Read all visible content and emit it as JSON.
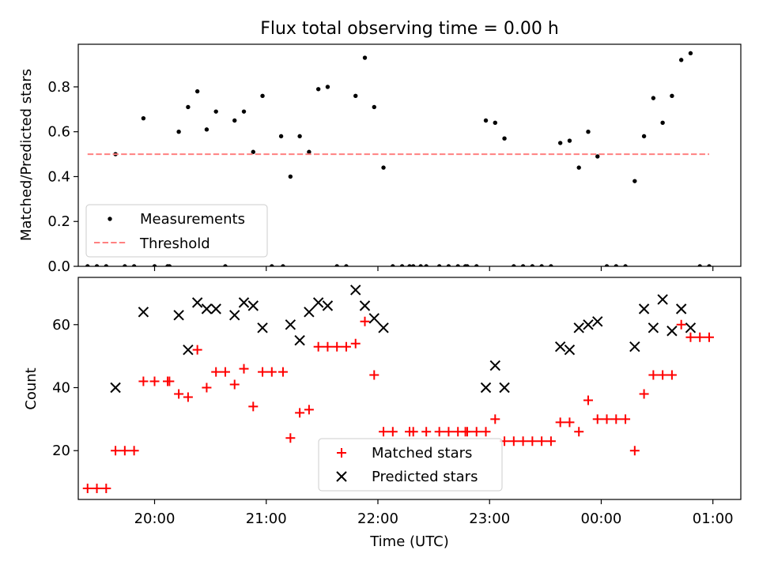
{
  "chart_data": [
    {
      "type": "scatter",
      "title": "Flux total observing time = 0.00 h",
      "xlabel": "",
      "ylabel": "Matched/Predicted stars",
      "ylim": [
        0,
        0.99
      ],
      "yticks": [
        "0.0",
        "0.2",
        "0.4",
        "0.6",
        "0.8"
      ],
      "ytick_values": [
        0,
        0.2,
        0.4,
        0.6,
        0.8
      ],
      "xlim": [
        "19:19",
        "01:15"
      ],
      "xtick_values": [
        "20:00",
        "21:00",
        "22:00",
        "23:00",
        "00:00",
        "01:00"
      ],
      "legend": {
        "placement": "lower-left",
        "entries": [
          "Measurements",
          "Threshold"
        ]
      },
      "grid": false,
      "series": [
        {
          "name": "Measurements",
          "marker": "dot",
          "color": "#000000",
          "points": [
            {
              "x": "19:24",
              "y": 0
            },
            {
              "x": "19:29",
              "y": 0
            },
            {
              "x": "19:34",
              "y": 0
            },
            {
              "x": "19:39",
              "y": 0.5
            },
            {
              "x": "19:44",
              "y": 0
            },
            {
              "x": "19:49",
              "y": 0
            },
            {
              "x": "19:54",
              "y": 0.66
            },
            {
              "x": "20:00",
              "y": 0
            },
            {
              "x": "20:07",
              "y": 0
            },
            {
              "x": "20:08",
              "y": 0
            },
            {
              "x": "20:13",
              "y": 0.6
            },
            {
              "x": "20:18",
              "y": 0.71
            },
            {
              "x": "20:23",
              "y": 0.78
            },
            {
              "x": "20:28",
              "y": 0.61
            },
            {
              "x": "20:33",
              "y": 0.69
            },
            {
              "x": "20:38",
              "y": 0
            },
            {
              "x": "20:43",
              "y": 0.65
            },
            {
              "x": "20:48",
              "y": 0.69
            },
            {
              "x": "20:53",
              "y": 0.51
            },
            {
              "x": "20:58",
              "y": 0.76
            },
            {
              "x": "21:03",
              "y": 0
            },
            {
              "x": "21:08",
              "y": 0.58
            },
            {
              "x": "21:09",
              "y": 0
            },
            {
              "x": "21:13",
              "y": 0.4
            },
            {
              "x": "21:18",
              "y": 0.58
            },
            {
              "x": "21:23",
              "y": 0.51
            },
            {
              "x": "21:28",
              "y": 0.79
            },
            {
              "x": "21:33",
              "y": 0.8
            },
            {
              "x": "21:38",
              "y": 0
            },
            {
              "x": "21:43",
              "y": 0
            },
            {
              "x": "21:48",
              "y": 0.76
            },
            {
              "x": "21:53",
              "y": 0.93
            },
            {
              "x": "21:58",
              "y": 0.71
            },
            {
              "x": "22:03",
              "y": 0.44
            },
            {
              "x": "22:08",
              "y": 0
            },
            {
              "x": "22:13",
              "y": 0
            },
            {
              "x": "22:17",
              "y": 0
            },
            {
              "x": "22:19",
              "y": 0
            },
            {
              "x": "22:23",
              "y": 0
            },
            {
              "x": "22:26",
              "y": 0
            },
            {
              "x": "22:33",
              "y": 0
            },
            {
              "x": "22:38",
              "y": 0
            },
            {
              "x": "22:43",
              "y": 0
            },
            {
              "x": "22:47",
              "y": 0
            },
            {
              "x": "22:48",
              "y": 0
            },
            {
              "x": "22:53",
              "y": 0
            },
            {
              "x": "22:58",
              "y": 0.65
            },
            {
              "x": "23:03",
              "y": 0.64
            },
            {
              "x": "23:08",
              "y": 0.57
            },
            {
              "x": "23:13",
              "y": 0
            },
            {
              "x": "23:18",
              "y": 0
            },
            {
              "x": "23:23",
              "y": 0
            },
            {
              "x": "23:28",
              "y": 0
            },
            {
              "x": "23:33",
              "y": 0
            },
            {
              "x": "23:38",
              "y": 0.55
            },
            {
              "x": "23:43",
              "y": 0.56
            },
            {
              "x": "23:48",
              "y": 0.44
            },
            {
              "x": "23:53",
              "y": 0.6
            },
            {
              "x": "23:58",
              "y": 0.49
            },
            {
              "x": "00:03",
              "y": 0
            },
            {
              "x": "00:08",
              "y": 0
            },
            {
              "x": "00:13",
              "y": 0
            },
            {
              "x": "00:18",
              "y": 0.38
            },
            {
              "x": "00:23",
              "y": 0.58
            },
            {
              "x": "00:28",
              "y": 0.75
            },
            {
              "x": "00:33",
              "y": 0.64
            },
            {
              "x": "00:38",
              "y": 0.76
            },
            {
              "x": "00:43",
              "y": 0.92
            },
            {
              "x": "00:48",
              "y": 0.95
            },
            {
              "x": "00:53",
              "y": 0
            },
            {
              "x": "00:58",
              "y": 0
            }
          ]
        },
        {
          "name": "Threshold",
          "style": "dashed",
          "color": "#ff8080",
          "points": [
            {
              "x": "19:24",
              "y": 0.5
            },
            {
              "x": "00:58",
              "y": 0.5
            }
          ]
        }
      ]
    },
    {
      "type": "scatter",
      "title": "",
      "xlabel": "Time (UTC)",
      "ylabel": "Count",
      "ylim": [
        4.5,
        75
      ],
      "yticks": [
        "20",
        "40",
        "60"
      ],
      "ytick_values": [
        20,
        40,
        60
      ],
      "xlim": [
        "19:19",
        "01:15"
      ],
      "xticks": [
        "20:00",
        "21:00",
        "22:00",
        "23:00",
        "00:00",
        "01:00"
      ],
      "legend": {
        "placement": "lower-center",
        "entries": [
          "Matched stars",
          "Predicted stars"
        ]
      },
      "grid": false,
      "series": [
        {
          "name": "Matched stars",
          "marker": "plus",
          "color": "#ff0000",
          "points": [
            {
              "x": "19:24",
              "y": 8
            },
            {
              "x": "19:29",
              "y": 8
            },
            {
              "x": "19:34",
              "y": 8
            },
            {
              "x": "19:39",
              "y": 20
            },
            {
              "x": "19:44",
              "y": 20
            },
            {
              "x": "19:49",
              "y": 20
            },
            {
              "x": "19:54",
              "y": 42
            },
            {
              "x": "20:00",
              "y": 42
            },
            {
              "x": "20:07",
              "y": 42
            },
            {
              "x": "20:08",
              "y": 42
            },
            {
              "x": "20:13",
              "y": 38
            },
            {
              "x": "20:18",
              "y": 37
            },
            {
              "x": "20:23",
              "y": 52
            },
            {
              "x": "20:28",
              "y": 40
            },
            {
              "x": "20:33",
              "y": 45
            },
            {
              "x": "20:38",
              "y": 45
            },
            {
              "x": "20:43",
              "y": 41
            },
            {
              "x": "20:48",
              "y": 46
            },
            {
              "x": "20:53",
              "y": 34
            },
            {
              "x": "20:58",
              "y": 45
            },
            {
              "x": "21:03",
              "y": 45
            },
            {
              "x": "21:09",
              "y": 45
            },
            {
              "x": "21:13",
              "y": 24
            },
            {
              "x": "21:18",
              "y": 32
            },
            {
              "x": "21:23",
              "y": 33
            },
            {
              "x": "21:28",
              "y": 53
            },
            {
              "x": "21:33",
              "y": 53
            },
            {
              "x": "21:38",
              "y": 53
            },
            {
              "x": "21:43",
              "y": 53
            },
            {
              "x": "21:48",
              "y": 54
            },
            {
              "x": "21:53",
              "y": 61
            },
            {
              "x": "21:58",
              "y": 44
            },
            {
              "x": "22:03",
              "y": 26
            },
            {
              "x": "22:08",
              "y": 26
            },
            {
              "x": "22:17",
              "y": 26
            },
            {
              "x": "22:19",
              "y": 26
            },
            {
              "x": "22:26",
              "y": 26
            },
            {
              "x": "22:33",
              "y": 26
            },
            {
              "x": "22:38",
              "y": 26
            },
            {
              "x": "22:43",
              "y": 26
            },
            {
              "x": "22:47",
              "y": 26
            },
            {
              "x": "22:48",
              "y": 26
            },
            {
              "x": "22:53",
              "y": 26
            },
            {
              "x": "22:58",
              "y": 26
            },
            {
              "x": "23:03",
              "y": 30
            },
            {
              "x": "23:08",
              "y": 23
            },
            {
              "x": "23:13",
              "y": 23
            },
            {
              "x": "23:18",
              "y": 23
            },
            {
              "x": "23:23",
              "y": 23
            },
            {
              "x": "23:28",
              "y": 23
            },
            {
              "x": "23:33",
              "y": 23
            },
            {
              "x": "23:38",
              "y": 29
            },
            {
              "x": "23:43",
              "y": 29
            },
            {
              "x": "23:48",
              "y": 26
            },
            {
              "x": "23:53",
              "y": 36
            },
            {
              "x": "23:58",
              "y": 30
            },
            {
              "x": "00:03",
              "y": 30
            },
            {
              "x": "00:08",
              "y": 30
            },
            {
              "x": "00:13",
              "y": 30
            },
            {
              "x": "00:18",
              "y": 20
            },
            {
              "x": "00:23",
              "y": 38
            },
            {
              "x": "00:28",
              "y": 44
            },
            {
              "x": "00:33",
              "y": 44
            },
            {
              "x": "00:38",
              "y": 44
            },
            {
              "x": "00:43",
              "y": 60
            },
            {
              "x": "00:48",
              "y": 56
            },
            {
              "x": "00:53",
              "y": 56
            },
            {
              "x": "00:58",
              "y": 56
            }
          ]
        },
        {
          "name": "Predicted stars",
          "marker": "x",
          "color": "#000000",
          "points": [
            {
              "x": "19:39",
              "y": 40
            },
            {
              "x": "19:54",
              "y": 64
            },
            {
              "x": "20:13",
              "y": 63
            },
            {
              "x": "20:18",
              "y": 52
            },
            {
              "x": "20:23",
              "y": 67
            },
            {
              "x": "20:28",
              "y": 65
            },
            {
              "x": "20:33",
              "y": 65
            },
            {
              "x": "20:43",
              "y": 63
            },
            {
              "x": "20:48",
              "y": 67
            },
            {
              "x": "20:53",
              "y": 66
            },
            {
              "x": "20:58",
              "y": 59
            },
            {
              "x": "21:13",
              "y": 60
            },
            {
              "x": "21:18",
              "y": 55
            },
            {
              "x": "21:23",
              "y": 64
            },
            {
              "x": "21:28",
              "y": 67
            },
            {
              "x": "21:33",
              "y": 66
            },
            {
              "x": "21:48",
              "y": 71
            },
            {
              "x": "21:53",
              "y": 66
            },
            {
              "x": "21:58",
              "y": 62
            },
            {
              "x": "22:03",
              "y": 59
            },
            {
              "x": "22:58",
              "y": 40
            },
            {
              "x": "23:03",
              "y": 47
            },
            {
              "x": "23:08",
              "y": 40
            },
            {
              "x": "23:38",
              "y": 53
            },
            {
              "x": "23:43",
              "y": 52
            },
            {
              "x": "23:48",
              "y": 59
            },
            {
              "x": "23:53",
              "y": 60
            },
            {
              "x": "23:58",
              "y": 61
            },
            {
              "x": "00:18",
              "y": 53
            },
            {
              "x": "00:23",
              "y": 65
            },
            {
              "x": "00:28",
              "y": 59
            },
            {
              "x": "00:33",
              "y": 68
            },
            {
              "x": "00:38",
              "y": 58
            },
            {
              "x": "00:43",
              "y": 65
            },
            {
              "x": "00:48",
              "y": 59
            }
          ]
        }
      ]
    }
  ]
}
